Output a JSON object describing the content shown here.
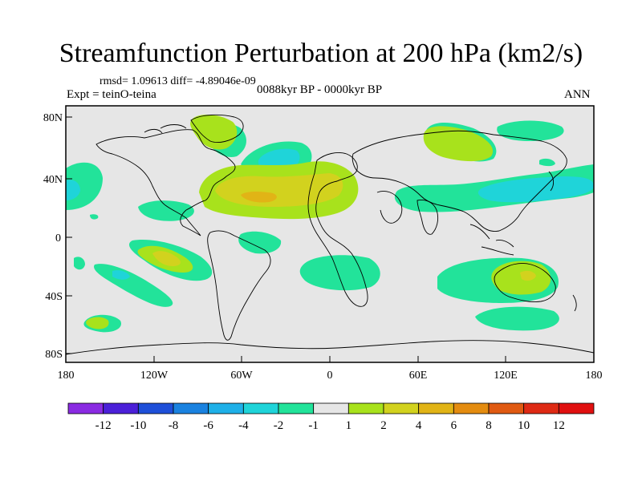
{
  "title": "Streamfunction Perturbation at 200 hPa (km2/s)",
  "stats_text": "rmsd= 1.09613 diff= -4.89046e-09",
  "experiment": "Expt = teinO-teina",
  "period": "0088kyr BP - 0000kyr BP",
  "season": "ANN",
  "lat_labels": [
    "80N",
    "40N",
    "0",
    "40S",
    "80S"
  ],
  "lon_labels": [
    "180",
    "120W",
    "60W",
    "0",
    "60E",
    "120E",
    "180"
  ],
  "colorbar_labels": [
    "-12",
    "-10",
    "-8",
    "-6",
    "-4",
    "-2",
    "-1",
    "1",
    "2",
    "4",
    "6",
    "8",
    "10",
    "12"
  ],
  "colorbar_colors": [
    "#8a2be2",
    "#4b20d8",
    "#1e4fd8",
    "#1a82e0",
    "#1eb0e8",
    "#1fd4d9",
    "#22e39a",
    "#e6e6e6",
    "#a8e21c",
    "#d2d21e",
    "#e1b416",
    "#e48c10",
    "#e05a12",
    "#de2a14",
    "#e01010"
  ],
  "colors": {
    "ocean_land_bg": "#e6e6e6",
    "pos1": "#a8e21c",
    "pos2": "#d2d21e",
    "pos3": "#e1b416",
    "neg1": "#22e39a",
    "neg2": "#1fd4d9"
  }
}
